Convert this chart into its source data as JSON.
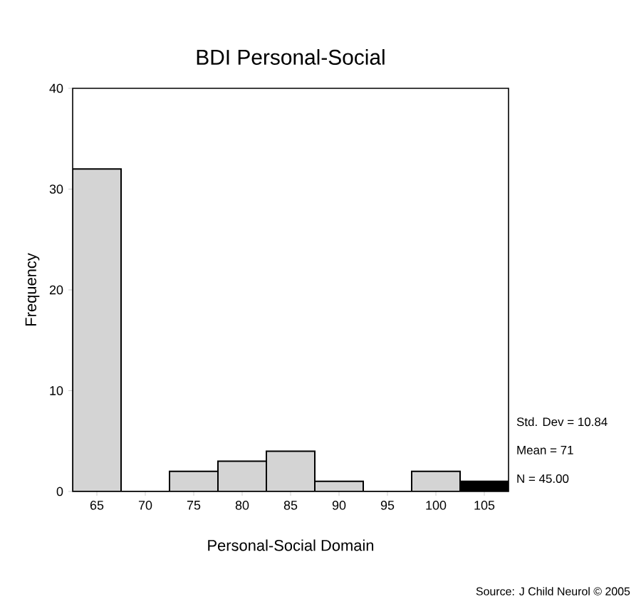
{
  "chart_data": {
    "type": "histogram",
    "title": "BDI Personal-Social",
    "xlabel": "Personal-Social Domain",
    "ylabel": "Frequency",
    "bins": [
      62.5,
      67.5,
      72.5,
      77.5,
      82.5,
      87.5,
      92.5,
      97.5,
      102.5,
      107.5
    ],
    "values": [
      32,
      0,
      2,
      3,
      4,
      1,
      0,
      2,
      1
    ],
    "colors": [
      "#d4d4d4",
      "#d4d4d4",
      "#d4d4d4",
      "#d4d4d4",
      "#d4d4d4",
      "#d4d4d4",
      "#d4d4d4",
      "#d4d4d4",
      "#000000"
    ],
    "xlim": [
      62.5,
      107.5
    ],
    "xticks": [
      65,
      70,
      75,
      80,
      85,
      90,
      95,
      100,
      105
    ],
    "ylim": [
      0,
      40
    ],
    "yticks": [
      0,
      10,
      20,
      30,
      40
    ],
    "grid": false,
    "annotations": [
      "Std. Dev = 10.84",
      "Mean = 71",
      "N = 45.00",
      "Source: J Child Neurol © 2005"
    ]
  }
}
